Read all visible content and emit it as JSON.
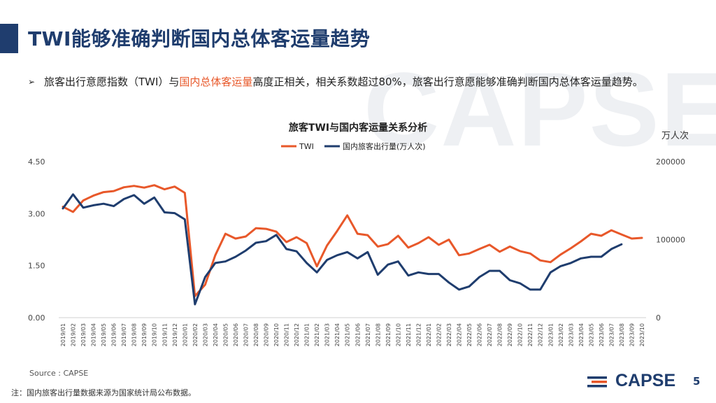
{
  "page": {
    "title": "TWI能够准确判断国内总体客运量趋势",
    "bullet_pre": "旅客出行意愿指数（TWI）与",
    "bullet_highlight": "国内总体客运量",
    "bullet_post": "高度正相关，相关系数超过80%，旅客出行意愿能够准确判断国内总体客运量趋势。",
    "source": "Source : CAPSE",
    "note": "注：国内旅客出行量数据来源为国家统计局公布数据。",
    "logo_text": "CAPSE",
    "watermark": "CAPSE",
    "page_number": "5",
    "bullet_icon": "arrow-bullet-icon"
  },
  "colors": {
    "twi": "#e8582a",
    "volume": "#1f3d6e",
    "title": "#1f3d6e",
    "highlight": "#e8582a"
  },
  "chart_data": {
    "type": "line",
    "title": "旅客TWI与国内客运量关系分析",
    "right_unit": "万人次",
    "x": [
      "2019/01",
      "2019/02",
      "2019/03",
      "2019/04",
      "2019/05",
      "2019/06",
      "2019/07",
      "2019/08",
      "2019/09",
      "2019/10",
      "2019/11",
      "2019/12",
      "2020/01",
      "2020/02",
      "2020/03",
      "2020/04",
      "2020/05",
      "2020/06",
      "2020/07",
      "2020/08",
      "2020/09",
      "2020/10",
      "2020/11",
      "2020/12",
      "2021/01",
      "2021/02",
      "2021/03",
      "2021/04",
      "2021/05",
      "2021/06",
      "2021/07",
      "2021/08",
      "2021/09",
      "2021/10",
      "2021/11",
      "2021/12",
      "2022/01",
      "2022/02",
      "2022/03",
      "2022/04",
      "2022/05",
      "2022/06",
      "2022/07",
      "2022/08",
      "2022/09",
      "2022/10",
      "2022/11",
      "2022/12",
      "2023/01",
      "2023/02",
      "2023/03",
      "2023/04",
      "2023/05",
      "2023/06",
      "2023/07",
      "2023/08",
      "2023/09",
      "2023/10"
    ],
    "x_tick_labels": [
      "2019/01",
      "2019/02",
      "2019/03",
      "2019/04",
      "2019/05",
      "2019/06",
      "2019/07",
      "2019/08",
      "2019/09",
      "2019/10",
      "2019/11",
      "2019/12",
      "2020/01",
      "2020/02",
      "2020/03",
      "2020/04",
      "2020/05",
      "2020/06",
      "2020/07",
      "2020/08",
      "2020/09",
      "2020/10",
      "2020/11",
      "2020/12",
      "2021/01",
      "2021/02",
      "2021/03",
      "2021/04",
      "2021/05",
      "2021/06",
      "2021/07",
      "2021/08",
      "2021/09",
      "2021/10",
      "2021/11",
      "2021/12",
      "2022/01",
      "2022/02",
      "2022/03",
      "2022/04",
      "2022/05",
      "2022/06",
      "2022/07",
      "2022/08",
      "2022/09",
      "2022/10",
      "2022/11",
      "2022/12",
      "2023/01",
      "2023/02",
      "2023/03",
      "2023/04",
      "2023/05",
      "2023/06",
      "2023/07",
      "2023/08",
      "2023/09",
      "2023/10"
    ],
    "y_left": {
      "range": [
        0,
        4.5
      ],
      "ticks": [
        0,
        1.5,
        3.0,
        4.5
      ],
      "tick_labels": [
        "0.00",
        "1.50",
        "3.00",
        "4.50"
      ]
    },
    "y_right": {
      "range": [
        0,
        200000
      ],
      "ticks": [
        0,
        100000,
        200000
      ],
      "tick_labels": [
        "0",
        "100000",
        "200000"
      ]
    },
    "legend_position": "top-center",
    "series": [
      {
        "name": "TWI",
        "axis": "left",
        "color": "#e8582a",
        "values": [
          3.2,
          3.05,
          3.38,
          3.52,
          3.62,
          3.65,
          3.76,
          3.8,
          3.75,
          3.82,
          3.7,
          3.78,
          3.6,
          0.62,
          0.95,
          1.8,
          2.42,
          2.28,
          2.34,
          2.58,
          2.56,
          2.48,
          2.18,
          2.32,
          2.15,
          1.48,
          2.08,
          2.5,
          2.95,
          2.42,
          2.38,
          2.05,
          2.12,
          2.36,
          2.02,
          2.15,
          2.32,
          2.1,
          2.25,
          1.8,
          1.85,
          1.98,
          2.1,
          1.9,
          2.05,
          1.92,
          1.85,
          1.65,
          1.6,
          1.82,
          2.0,
          2.2,
          2.42,
          2.36,
          2.52,
          2.4,
          2.28,
          2.3
        ]
      },
      {
        "name": "国内旅客出行量(万人次)",
        "axis": "right",
        "color": "#1f3d6e",
        "values": [
          140000,
          158000,
          141000,
          144000,
          146000,
          143000,
          152000,
          157000,
          146000,
          154000,
          135000,
          134000,
          126000,
          17000,
          52000,
          70000,
          72000,
          78000,
          86000,
          96000,
          98000,
          106000,
          88000,
          85000,
          70000,
          58000,
          74000,
          80000,
          84000,
          76000,
          84000,
          55000,
          68000,
          72000,
          54000,
          58000,
          56000,
          56000,
          45000,
          36000,
          40000,
          52000,
          60000,
          60000,
          48000,
          44000,
          36000,
          36000,
          58000,
          66000,
          70000,
          76000,
          78000,
          78000,
          88000,
          94000,
          null,
          null
        ]
      }
    ]
  }
}
